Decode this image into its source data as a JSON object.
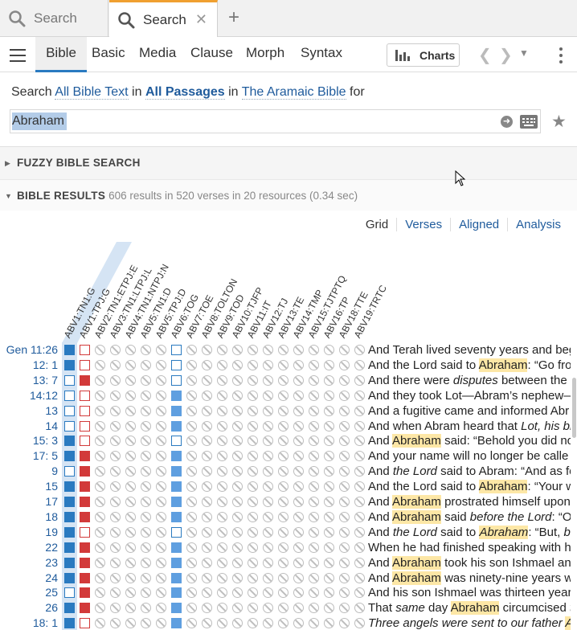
{
  "tabs": [
    {
      "label": "Search",
      "active": false
    },
    {
      "label": "Search",
      "active": true,
      "close": "✕"
    }
  ],
  "new_tab": "+",
  "toolbar": {
    "search_types": [
      "Bible",
      "Basic",
      "Media",
      "Clause",
      "Morph",
      "Syntax"
    ],
    "active_type": "Bible",
    "charts_label": "Charts"
  },
  "search_line": {
    "prefix": "Search",
    "text_scope": "All Bible Text",
    "in1": "in",
    "passages": "All Passages",
    "in2": "in",
    "resource": "The Aramaic Bible",
    "for": "for"
  },
  "query": "Abraham",
  "sections": {
    "fuzzy": "FUZZY BIBLE SEARCH",
    "results": "BIBLE RESULTS",
    "results_summary": "606 results in 520 verses in 20 resources (0.34 sec)"
  },
  "view_options": [
    "Grid",
    "Verses",
    "Aligned",
    "Analysis"
  ],
  "columns": [
    "ABV1:TN1:G",
    "ABV1:TPJ:G",
    "ABV2:TN1:ETPJ:E",
    "ABV3:TN1:LTPJ:L",
    "ABV4:TN1:NTPJ:N",
    "ABV5:TN1:D",
    "ABV5:TPJ:D",
    "ABV6:TOG",
    "ABV7:TOE",
    "ABV8:TOLTON",
    "ABV9:TOD",
    "ABV10:TJFP",
    "ABV11:IT",
    "ABV12:TJ",
    "ABV13:TE",
    "ABV14:TMP",
    "ABV15:TJTPTQ",
    "ABV16:TP",
    "ABV18:TTE",
    "ABV19:TRTC"
  ],
  "rows": [
    {
      "ref": "Gen 11:26",
      "cells": [
        "B",
        "r",
        "n",
        "n",
        "n",
        "n",
        "n",
        "b",
        "n",
        "n",
        "n",
        "n",
        "n",
        "n",
        "n",
        "n",
        "n",
        "n",
        "n",
        "n"
      ],
      "text": [
        [
          "And Terah lived seventy years and beg",
          ""
        ]
      ]
    },
    {
      "ref": "12: 1",
      "cells": [
        "B",
        "r",
        "n",
        "n",
        "n",
        "n",
        "n",
        "b",
        "n",
        "n",
        "n",
        "n",
        "n",
        "n",
        "n",
        "n",
        "n",
        "n",
        "n",
        "n"
      ],
      "text": [
        [
          "And the Lord said to ",
          ""
        ],
        [
          "Abraham",
          "hl"
        ],
        [
          ": “Go fro",
          ""
        ]
      ]
    },
    {
      "ref": "13: 7",
      "cells": [
        "b",
        "R",
        "n",
        "n",
        "n",
        "n",
        "n",
        "b",
        "n",
        "n",
        "n",
        "n",
        "n",
        "n",
        "n",
        "n",
        "n",
        "n",
        "n",
        "n"
      ],
      "text": [
        [
          "And there were ",
          ""
        ],
        [
          "disputes",
          "it"
        ],
        [
          " between the h",
          ""
        ]
      ]
    },
    {
      "ref": "14:12",
      "cells": [
        "b",
        "r",
        "n",
        "n",
        "n",
        "n",
        "n",
        "L",
        "n",
        "n",
        "n",
        "n",
        "n",
        "n",
        "n",
        "n",
        "n",
        "n",
        "n",
        "n"
      ],
      "text": [
        [
          "And they took Lot—Abram’s nephew—",
          ""
        ]
      ]
    },
    {
      "ref": "13",
      "cells": [
        "b",
        "r",
        "n",
        "n",
        "n",
        "n",
        "n",
        "L",
        "n",
        "n",
        "n",
        "n",
        "n",
        "n",
        "n",
        "n",
        "n",
        "n",
        "n",
        "n"
      ],
      "text": [
        [
          "And a fugitive came and informed Abr",
          ""
        ]
      ]
    },
    {
      "ref": "14",
      "cells": [
        "b",
        "r",
        "n",
        "n",
        "n",
        "n",
        "n",
        "L",
        "n",
        "n",
        "n",
        "n",
        "n",
        "n",
        "n",
        "n",
        "n",
        "n",
        "n",
        "n"
      ],
      "text": [
        [
          "And when Abram heard that ",
          ""
        ],
        [
          "Lot, his br",
          "it"
        ]
      ]
    },
    {
      "ref": "15: 3",
      "cells": [
        "B",
        "r",
        "n",
        "n",
        "n",
        "n",
        "n",
        "b",
        "n",
        "n",
        "n",
        "n",
        "n",
        "n",
        "n",
        "n",
        "n",
        "n",
        "n",
        "n"
      ],
      "text": [
        [
          "And ",
          ""
        ],
        [
          "Abraham",
          "hl"
        ],
        [
          " said: “Behold you did no",
          ""
        ]
      ]
    },
    {
      "ref": "17: 5",
      "cells": [
        "B",
        "R",
        "n",
        "n",
        "n",
        "n",
        "n",
        "L",
        "n",
        "n",
        "n",
        "n",
        "n",
        "n",
        "n",
        "n",
        "n",
        "n",
        "n",
        "n"
      ],
      "text": [
        [
          "And your name will no longer be calle",
          ""
        ]
      ]
    },
    {
      "ref": "9",
      "cells": [
        "b",
        "R",
        "n",
        "n",
        "n",
        "n",
        "n",
        "L",
        "n",
        "n",
        "n",
        "n",
        "n",
        "n",
        "n",
        "n",
        "n",
        "n",
        "n",
        "n"
      ],
      "text": [
        [
          "And ",
          ""
        ],
        [
          "the Lord",
          "it"
        ],
        [
          " said to Abram: “And as fo",
          ""
        ]
      ]
    },
    {
      "ref": "15",
      "cells": [
        "B",
        "R",
        "n",
        "n",
        "n",
        "n",
        "n",
        "L",
        "n",
        "n",
        "n",
        "n",
        "n",
        "n",
        "n",
        "n",
        "n",
        "n",
        "n",
        "n"
      ],
      "text": [
        [
          "And the Lord said to ",
          ""
        ],
        [
          "Abraham",
          "hl"
        ],
        [
          ": “Your w",
          ""
        ]
      ]
    },
    {
      "ref": "17",
      "cells": [
        "B",
        "R",
        "n",
        "n",
        "n",
        "n",
        "n",
        "L",
        "n",
        "n",
        "n",
        "n",
        "n",
        "n",
        "n",
        "n",
        "n",
        "n",
        "n",
        "n"
      ],
      "text": [
        [
          "And ",
          ""
        ],
        [
          "Abraham",
          "hl"
        ],
        [
          " prostrated himself upon",
          ""
        ]
      ]
    },
    {
      "ref": "18",
      "cells": [
        "B",
        "R",
        "n",
        "n",
        "n",
        "n",
        "n",
        "L",
        "n",
        "n",
        "n",
        "n",
        "n",
        "n",
        "n",
        "n",
        "n",
        "n",
        "n",
        "n"
      ],
      "text": [
        [
          "And ",
          ""
        ],
        [
          "Abraham",
          "hl"
        ],
        [
          " said ",
          ""
        ],
        [
          "before the Lord",
          "it"
        ],
        [
          ": “Oh",
          ""
        ]
      ]
    },
    {
      "ref": "19",
      "cells": [
        "B",
        "r",
        "n",
        "n",
        "n",
        "n",
        "n",
        "b",
        "n",
        "n",
        "n",
        "n",
        "n",
        "n",
        "n",
        "n",
        "n",
        "n",
        "n",
        "n"
      ],
      "text": [
        [
          "And ",
          ""
        ],
        [
          "the Lord",
          "it"
        ],
        [
          " said to ",
          ""
        ],
        [
          "Abraham",
          "hl it"
        ],
        [
          ": “But, ",
          ""
        ],
        [
          "be",
          "it"
        ]
      ]
    },
    {
      "ref": "22",
      "cells": [
        "B",
        "R",
        "n",
        "n",
        "n",
        "n",
        "n",
        "L",
        "n",
        "n",
        "n",
        "n",
        "n",
        "n",
        "n",
        "n",
        "n",
        "n",
        "n",
        "n"
      ],
      "text": [
        [
          "When he had finished speaking with h",
          ""
        ]
      ]
    },
    {
      "ref": "23",
      "cells": [
        "B",
        "R",
        "n",
        "n",
        "n",
        "n",
        "n",
        "L",
        "n",
        "n",
        "n",
        "n",
        "n",
        "n",
        "n",
        "n",
        "n",
        "n",
        "n",
        "n"
      ],
      "text": [
        [
          "And ",
          ""
        ],
        [
          "Abraham",
          "hl"
        ],
        [
          " took his son Ishmael and",
          ""
        ]
      ]
    },
    {
      "ref": "24",
      "cells": [
        "B",
        "R",
        "n",
        "n",
        "n",
        "n",
        "n",
        "L",
        "n",
        "n",
        "n",
        "n",
        "n",
        "n",
        "n",
        "n",
        "n",
        "n",
        "n",
        "n"
      ],
      "text": [
        [
          "And ",
          ""
        ],
        [
          "Abraham",
          "hl"
        ],
        [
          " was ninety-nine years w",
          ""
        ]
      ]
    },
    {
      "ref": "25",
      "cells": [
        "b",
        "R",
        "n",
        "n",
        "n",
        "n",
        "n",
        "L",
        "n",
        "n",
        "n",
        "n",
        "n",
        "n",
        "n",
        "n",
        "n",
        "n",
        "n",
        "n"
      ],
      "text": [
        [
          "And his son Ishmael was thirteen years",
          ""
        ]
      ]
    },
    {
      "ref": "26",
      "cells": [
        "B",
        "R",
        "n",
        "n",
        "n",
        "n",
        "n",
        "L",
        "n",
        "n",
        "n",
        "n",
        "n",
        "n",
        "n",
        "n",
        "n",
        "n",
        "n",
        "n"
      ],
      "text": [
        [
          "That ",
          ""
        ],
        [
          "same",
          "it"
        ],
        [
          " day ",
          ""
        ],
        [
          "Abraham",
          "hl"
        ],
        [
          " circumcised ",
          ""
        ],
        [
          "t",
          "it"
        ]
      ]
    },
    {
      "ref": "18: 1",
      "cells": [
        "B",
        "r",
        "n",
        "n",
        "n",
        "n",
        "n",
        "L",
        "n",
        "n",
        "n",
        "n",
        "n",
        "n",
        "n",
        "n",
        "n",
        "n",
        "n",
        "n"
      ],
      "text": [
        [
          "Three angels were sent to our father ",
          "it"
        ],
        [
          "Ab",
          "hl it"
        ]
      ]
    }
  ],
  "colors": {
    "accent": "#2a7ac0",
    "result_red": "#d23a3a",
    "result_light": "#5f9fe0",
    "highlight": "#fde7a6",
    "tab_active": "#f0a030"
  }
}
